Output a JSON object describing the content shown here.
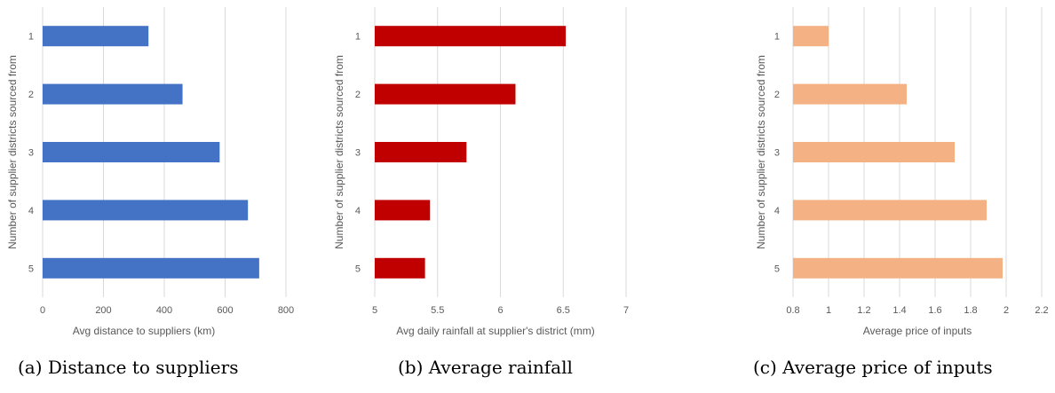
{
  "captions": [
    "(a) Distance to suppliers",
    "(b) Average rainfall",
    "(c) Average price of inputs"
  ],
  "chart_data": [
    {
      "type": "bar",
      "orientation": "horizontal",
      "categories": [
        "1",
        "2",
        "3",
        "4",
        "5"
      ],
      "values": [
        348,
        460,
        582,
        675,
        712
      ],
      "xlabel": "Avg distance to suppliers (km)",
      "ylabel": "Number of supplier districts sourced from",
      "xlim": [
        0,
        800
      ],
      "xticks": [
        0,
        200,
        400,
        600,
        800
      ],
      "xtick_labels": [
        "0",
        "200",
        "400",
        "600",
        "800"
      ],
      "grid": "vertical",
      "color": "#4472C4"
    },
    {
      "type": "bar",
      "orientation": "horizontal",
      "categories": [
        "1",
        "2",
        "3",
        "4",
        "5"
      ],
      "values": [
        6.52,
        6.12,
        5.73,
        5.44,
        5.4
      ],
      "xlabel": "Avg daily rainfall at supplier's district (mm)",
      "ylabel": "Number of supplier districts sourced from",
      "xlim": [
        5,
        7
      ],
      "xticks": [
        5,
        5.5,
        6,
        6.5,
        7
      ],
      "xtick_labels": [
        "5",
        "5.5",
        "6",
        "6.5",
        "7"
      ],
      "grid": "vertical",
      "color": "#C00000"
    },
    {
      "type": "bar",
      "orientation": "horizontal",
      "categories": [
        "1",
        "2",
        "3",
        "4",
        "5"
      ],
      "values": [
        1.0,
        1.44,
        1.71,
        1.89,
        1.98
      ],
      "xlabel": "Average price of inputs",
      "ylabel": "Number of supplier districts sourced from",
      "xlim": [
        0.8,
        2.2
      ],
      "xticks": [
        0.8,
        1.0,
        1.2,
        1.4,
        1.6,
        1.8,
        2.0,
        2.2
      ],
      "xtick_labels": [
        "0.8",
        "1",
        "1.2",
        "1.4",
        "1.6",
        "1.8",
        "2",
        "2.2"
      ],
      "grid": "vertical",
      "color": "#F4B183"
    }
  ]
}
